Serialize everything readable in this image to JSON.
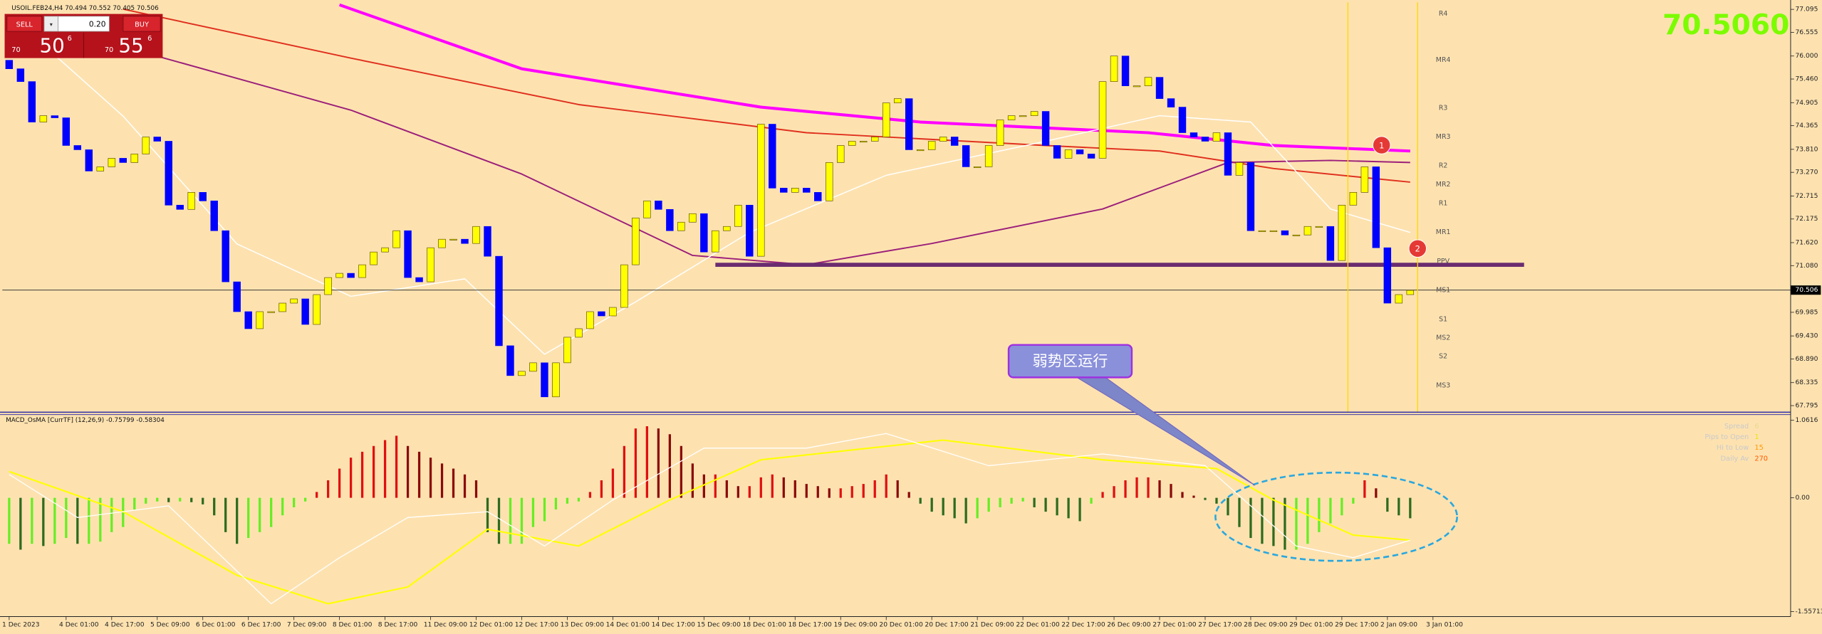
{
  "header": {
    "price": "70.5060"
  },
  "trade_panel": {
    "sell": "SELL",
    "buy": "BUY",
    "lots": {
      "value": 0.2,
      "label": "0.20"
    },
    "bid": {
      "prefix": "70",
      "big": "50",
      "suffix": "6"
    },
    "ask": {
      "prefix": "70",
      "big": "55",
      "suffix": "6"
    }
  },
  "chart_data": [
    {
      "type": "candlestick",
      "title": "USOIL.FEB24,H4  70.494 70.552 70.405 70.506",
      "up_color": "#ffff00",
      "down_color": "#0000ff",
      "xlim": [
        -0.6,
        156.4
      ],
      "ylim": [
        67.64,
        77.26
      ],
      "yticks": [
        77.095,
        76.555,
        {
          "value": 76,
          "label": "76.000"
        },
        {
          "value": 75.46,
          "label": "75.460"
        },
        74.905,
        74.365,
        {
          "value": 73.81,
          "label": "73.810"
        },
        {
          "value": 73.27,
          "label": "73.270"
        },
        72.715,
        72.175,
        {
          "value": 71.62,
          "label": "71.620"
        },
        {
          "value": 71.08,
          "label": "71.080"
        },
        69.985,
        {
          "value": 69.43,
          "label": "69.430"
        },
        {
          "value": 68.89,
          "label": "68.890"
        },
        68.335,
        67.795
      ],
      "current_price": 70.506,
      "open": [
        75.9,
        75.7,
        75.4,
        74.45,
        74.6,
        74.55,
        73.9,
        73.8,
        73.3,
        73.4,
        73.6,
        73.5,
        73.7,
        74.1,
        74.0,
        72.5,
        72.4,
        72.8,
        72.6,
        71.9,
        70.7,
        70.0,
        69.6,
        70.0,
        70.0,
        70.2,
        70.3,
        69.7,
        70.4,
        70.8,
        70.9,
        70.8,
        71.1,
        71.4,
        71.5,
        71.9,
        70.8,
        70.7,
        71.5,
        71.7,
        71.7,
        71.6,
        72.0,
        71.3,
        69.2,
        68.5,
        68.6,
        68.8,
        68.0,
        68.8,
        69.4,
        69.6,
        70.0,
        69.9,
        70.1,
        71.1,
        72.2,
        72.6,
        72.4,
        71.9,
        72.1,
        72.3,
        71.4,
        71.9,
        72.0,
        72.5,
        71.3,
        74.4,
        72.9,
        72.8,
        72.9,
        72.8,
        72.6,
        73.5,
        73.9,
        74.0,
        74.0,
        74.1,
        74.9,
        75.0,
        73.8,
        73.8,
        74.0,
        74.1,
        73.9,
        73.4,
        73.4,
        73.9,
        74.5,
        74.6,
        74.6,
        74.7,
        73.9,
        73.6,
        73.8,
        73.7,
        73.6,
        75.4,
        76.0,
        75.3,
        75.3,
        75.5,
        75.0,
        74.8,
        74.2,
        74.1,
        74.0,
        74.2,
        73.2,
        73.5,
        71.9,
        71.9,
        71.9,
        71.8,
        71.8,
        72.0,
        72.0,
        71.2,
        72.5,
        72.8,
        73.4,
        71.5,
        70.2,
        70.4
      ],
      "close": [
        75.7,
        75.4,
        74.45,
        74.6,
        74.55,
        73.9,
        73.8,
        73.3,
        73.4,
        73.6,
        73.5,
        73.7,
        74.1,
        74.0,
        72.5,
        72.4,
        72.8,
        72.6,
        71.9,
        70.7,
        70.0,
        69.6,
        70.0,
        70.0,
        70.2,
        70.3,
        69.7,
        70.4,
        70.8,
        70.9,
        70.8,
        71.1,
        71.4,
        71.5,
        71.9,
        70.8,
        70.7,
        71.5,
        71.7,
        71.7,
        71.6,
        72.0,
        71.3,
        69.2,
        68.5,
        68.6,
        68.8,
        68.0,
        68.8,
        69.4,
        69.6,
        70.0,
        69.9,
        70.1,
        71.1,
        72.2,
        72.6,
        72.4,
        71.9,
        72.1,
        72.3,
        71.4,
        71.9,
        72.0,
        72.5,
        71.3,
        74.4,
        72.9,
        72.8,
        72.9,
        72.8,
        72.6,
        73.5,
        73.9,
        74.0,
        74.0,
        74.1,
        74.9,
        75.0,
        73.8,
        73.8,
        74.0,
        74.1,
        73.9,
        73.4,
        73.4,
        73.9,
        74.5,
        74.6,
        74.6,
        74.7,
        73.9,
        73.6,
        73.8,
        73.7,
        73.6,
        75.4,
        76.0,
        75.3,
        75.3,
        75.5,
        75.0,
        74.8,
        74.2,
        74.1,
        74.0,
        74.2,
        73.2,
        73.5,
        71.9,
        71.9,
        71.9,
        71.8,
        71.8,
        72.0,
        72.0,
        71.2,
        72.5,
        72.8,
        73.4,
        71.5,
        70.2,
        70.4,
        70.5
      ],
      "lines": [
        {
          "color": "#ff00ff",
          "width": 2.5,
          "x": [
            29,
            45,
            66,
            80,
            100,
            111,
            123
          ],
          "values": [
            77.2,
            75.7,
            74.8,
            74.45,
            74.2,
            73.9,
            73.77
          ]
        },
        {
          "color": "#e0301e",
          "width": 1.2,
          "x": [
            10,
            30,
            50,
            70,
            91,
            101,
            111,
            123
          ],
          "values": [
            77.1,
            75.95,
            74.86,
            74.2,
            73.9,
            73.77,
            73.36,
            73.04
          ]
        },
        {
          "color": "#9c1f7a",
          "width": 1.2,
          "x": [
            0,
            10,
            30,
            45,
            60,
            70,
            81,
            96,
            107,
            116,
            123
          ],
          "values": [
            76.9,
            76.22,
            74.73,
            73.23,
            71.32,
            71.1,
            71.6,
            72.41,
            73.5,
            73.55,
            73.5
          ]
        },
        {
          "color": "#ffffff",
          "width": 0.9,
          "x": [
            2,
            10,
            20,
            30,
            40,
            47,
            55,
            65,
            77,
            91,
            101,
            109,
            116,
            123
          ],
          "values": [
            76.5,
            74.59,
            71.59,
            70.36,
            70.77,
            69.0,
            70.23,
            71.86,
            73.2,
            74.0,
            74.6,
            74.45,
            72.41,
            71.86
          ]
        }
      ],
      "support": {
        "value": 71.1,
        "x": [
          62,
          133
        ],
        "color": "#6a2c70"
      },
      "pivots": {
        "labels": [
          "R4",
          "MR4",
          "R3",
          "MR3",
          "R2",
          "MR2",
          "R1",
          "MR1",
          "PPV",
          "MS1",
          "S1",
          "MS2",
          "S2",
          "MS3"
        ],
        "values": [
          76.99,
          75.9,
          74.78,
          74.1,
          73.42,
          72.98,
          72.54,
          71.86,
          71.18,
          70.5,
          69.82,
          69.38,
          68.95,
          68.26
        ]
      },
      "markers": [
        "1",
        "2"
      ],
      "callout": "弱势区运行"
    },
    {
      "type": "macd",
      "title": "MACD_OsMA [CurrTF] (12,26,9) -0.75799 -0.58304",
      "xlim": [
        -0.6,
        156.4
      ],
      "ylim": [
        -1.61,
        1.14
      ],
      "yticks": [
        1.0616,
        {
          "value": 0,
          "label": "0.00"
        },
        -1.55713
      ],
      "xticks": [
        {
          "value": 0,
          "label": "1 Dec 2023"
        },
        {
          "value": 5,
          "label": "4 Dec 01:00"
        },
        {
          "value": 9,
          "label": "4 Dec 17:00"
        },
        {
          "value": 13,
          "label": "5 Dec 09:00"
        },
        {
          "value": 17,
          "label": "6 Dec 01:00"
        },
        {
          "value": 21,
          "label": "6 Dec 17:00"
        },
        {
          "value": 25,
          "label": "7 Dec 09:00"
        },
        {
          "value": 29,
          "label": "8 Dec 01:00"
        },
        {
          "value": 33,
          "label": "8 Dec 17:00"
        },
        {
          "value": 37,
          "label": "11 Dec 09:00"
        },
        {
          "value": 41,
          "label": "12 Dec 01:00"
        },
        {
          "value": 45,
          "label": "12 Dec 17:00"
        },
        {
          "value": 49,
          "label": "13 Dec 09:00"
        },
        {
          "value": 53,
          "label": "14 Dec 01:00"
        },
        {
          "value": 57,
          "label": "14 Dec 17:00"
        },
        {
          "value": 61,
          "label": "15 Dec 09:00"
        },
        {
          "value": 65,
          "label": "18 Dec 01:00"
        },
        {
          "value": 69,
          "label": "18 Dec 17:00"
        },
        {
          "value": 73,
          "label": "19 Dec 09:00"
        },
        {
          "value": 77,
          "label": "20 Dec 01:00"
        },
        {
          "value": 81,
          "label": "20 Dec 17:00"
        },
        {
          "value": 85,
          "label": "21 Dec 09:00"
        },
        {
          "value": 89,
          "label": "22 Dec 01:00"
        },
        {
          "value": 93,
          "label": "22 Dec 17:00"
        },
        {
          "value": 97,
          "label": "26 Dec 09:00"
        },
        {
          "value": 101,
          "label": "27 Dec 01:00"
        },
        {
          "value": 105,
          "label": "27 Dec 17:00"
        },
        {
          "value": 109,
          "label": "28 Dec 09:00"
        },
        {
          "value": 113,
          "label": "29 Dec 01:00"
        },
        {
          "value": 117,
          "label": "29 Dec 17:00"
        },
        {
          "value": 121,
          "label": "2 Jan 09:00"
        },
        {
          "value": 125,
          "label": "3 Jan 01:00"
        }
      ],
      "values": [
        -0.63,
        -0.71,
        -0.63,
        -0.66,
        -0.63,
        -0.55,
        -0.63,
        -0.63,
        -0.6,
        -0.47,
        -0.4,
        -0.16,
        -0.08,
        -0.05,
        -0.06,
        -0.05,
        -0.06,
        -0.09,
        -0.24,
        -0.47,
        -0.63,
        -0.55,
        -0.47,
        -0.4,
        -0.24,
        -0.13,
        -0.05,
        0.08,
        0.24,
        0.4,
        0.55,
        0.63,
        0.71,
        0.79,
        0.85,
        0.71,
        0.63,
        0.55,
        0.47,
        0.4,
        0.32,
        0.24,
        -0.47,
        -0.63,
        -0.63,
        -0.63,
        -0.4,
        -0.32,
        -0.16,
        -0.08,
        -0.05,
        0.08,
        0.24,
        0.4,
        0.71,
        0.95,
        0.98,
        0.95,
        0.87,
        0.71,
        0.47,
        0.32,
        0.32,
        0.24,
        0.16,
        0.16,
        0.28,
        0.32,
        0.28,
        0.24,
        0.19,
        0.16,
        0.13,
        0.13,
        0.16,
        0.19,
        0.24,
        0.32,
        0.24,
        0.08,
        -0.08,
        -0.19,
        -0.24,
        -0.28,
        -0.35,
        -0.28,
        -0.19,
        -0.13,
        -0.08,
        -0.05,
        -0.13,
        -0.19,
        -0.24,
        -0.28,
        -0.32,
        -0.08,
        0.08,
        0.16,
        0.24,
        0.28,
        0.28,
        0.24,
        0.19,
        0.08,
        0.03,
        -0.03,
        -0.08,
        -0.24,
        -0.4,
        -0.55,
        -0.63,
        -0.66,
        -0.71,
        -0.71,
        -0.63,
        -0.47,
        -0.35,
        -0.24,
        -0.08,
        0.24,
        0.13,
        -0.19,
        -0.24,
        -0.28
      ],
      "lines": [
        {
          "color": "#ffff00",
          "width": 1.3,
          "x": [
            0,
            10,
            20,
            28,
            35,
            42,
            50,
            58,
            66,
            82,
            96,
            106,
            111,
            118,
            123
          ],
          "values": [
            0.36,
            -0.19,
            -1.06,
            -1.45,
            -1.22,
            -0.43,
            -0.66,
            -0.03,
            0.52,
            0.79,
            0.52,
            0.4,
            -0.03,
            -0.51,
            -0.58
          ]
        },
        {
          "color": "#ffffff",
          "width": 0.8,
          "x": [
            0,
            6,
            14,
            23,
            29,
            35,
            42,
            47,
            53,
            61,
            70,
            77,
            86,
            96,
            105,
            113,
            118,
            123
          ],
          "values": [
            0.32,
            -0.27,
            -0.11,
            -1.45,
            -0.82,
            -0.27,
            -0.19,
            -0.66,
            -0.03,
            0.68,
            0.68,
            0.88,
            0.44,
            0.6,
            0.44,
            -0.66,
            -0.82,
            -0.58
          ]
        }
      ],
      "info": {
        "labels": [
          "Spread",
          "Pips to Open",
          "Hi to Low",
          "Daily Av"
        ],
        "values": [
          6,
          1,
          15,
          270
        ],
        "colors": [
          "#e8d890",
          "#e8e800",
          "#ff9900",
          "#ff5a00"
        ]
      }
    }
  ]
}
